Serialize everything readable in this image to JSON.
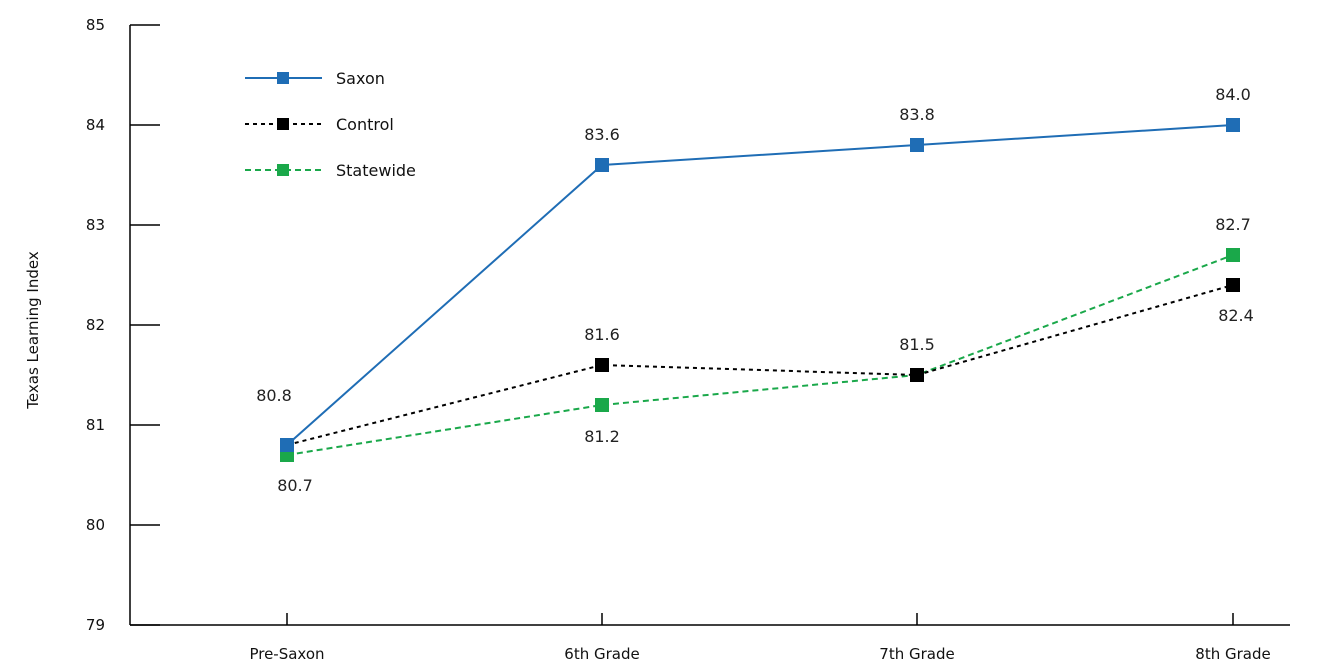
{
  "chart_data": {
    "type": "line",
    "title": "",
    "xlabel": "",
    "ylabel": "Texas Learning Index",
    "categories": [
      "Pre-Saxon",
      "6th Grade",
      "7th Grade",
      "8th Grade"
    ],
    "ylim": [
      79,
      85
    ],
    "yticks": [
      "79",
      "80",
      "81",
      "82",
      "83",
      "84",
      "85"
    ],
    "grid": false,
    "legend_position": "top-left",
    "series": [
      {
        "name": "Saxon",
        "values": [
          80.8,
          83.6,
          83.8,
          84.0
        ],
        "labels": [
          "80.8",
          "83.6",
          "83.8",
          "84.0"
        ],
        "label_positions": [
          "above",
          "above",
          "above",
          "above"
        ],
        "color": "#1f6db5",
        "line_style": "solid"
      },
      {
        "name": "Control",
        "values": [
          80.8,
          81.6,
          81.5,
          82.4
        ],
        "labels": [
          "",
          "81.6",
          "81.5",
          "82.4"
        ],
        "label_positions": [
          "",
          "above",
          "above",
          "below"
        ],
        "color": "#000000",
        "line_style": "dotted"
      },
      {
        "name": "Statewide",
        "values": [
          80.7,
          81.2,
          81.5,
          82.7
        ],
        "labels": [
          "80.7",
          "81.2",
          "",
          "82.7"
        ],
        "label_positions": [
          "below",
          "below",
          "",
          "above"
        ],
        "color": "#1aa84a",
        "line_style": "dashed"
      }
    ]
  }
}
